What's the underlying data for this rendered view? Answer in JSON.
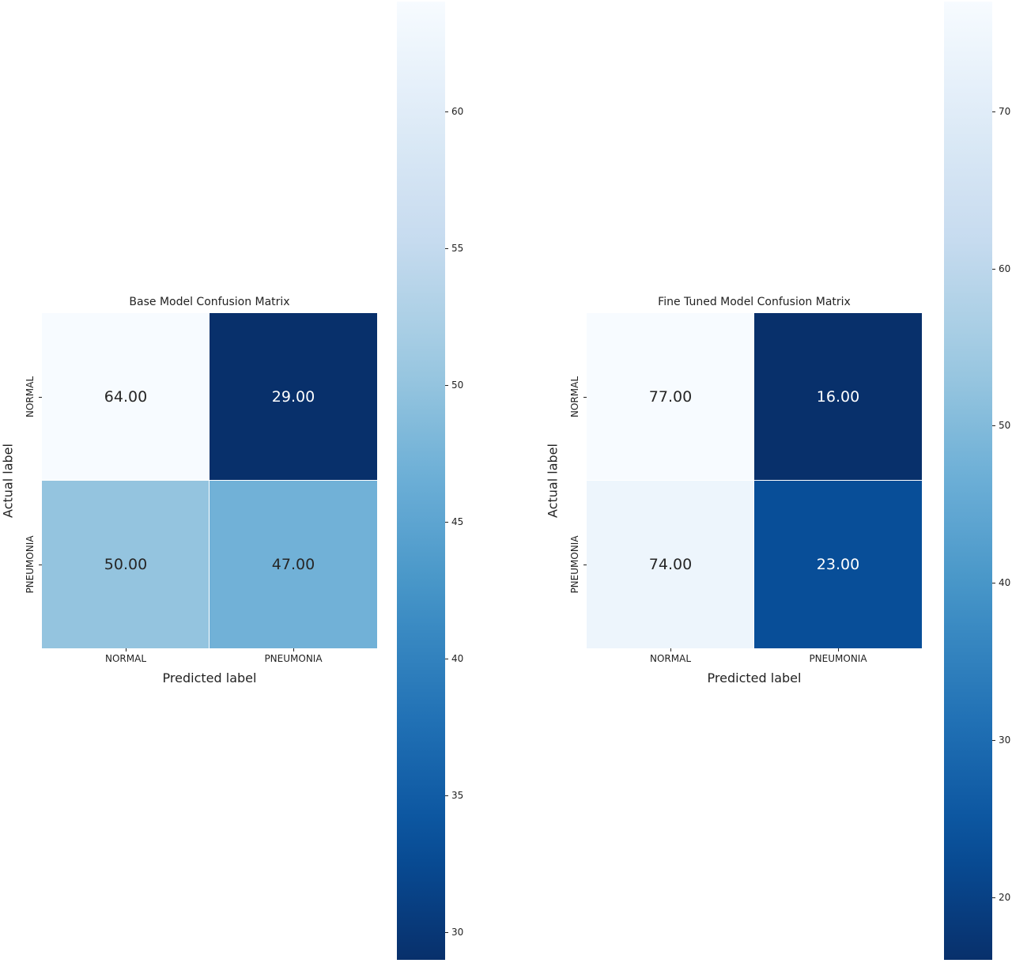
{
  "chart_data": [
    {
      "type": "heatmap",
      "title": "Base Model Confusion Matrix",
      "xlabel": "Predicted label",
      "ylabel": "Actual label",
      "x_categories": [
        "NORMAL",
        "PNEUMONIA"
      ],
      "y_categories": [
        "NORMAL",
        "PNEUMONIA"
      ],
      "values": [
        [
          64,
          29
        ],
        [
          50,
          47
        ]
      ],
      "value_labels": [
        [
          "64.00",
          "29.00"
        ],
        [
          "50.00",
          "47.00"
        ]
      ],
      "colormap": "Blues_r",
      "colorbar": {
        "min": 29,
        "max": 64,
        "ticks": [
          30,
          35,
          40,
          45,
          50,
          55,
          60
        ]
      }
    },
    {
      "type": "heatmap",
      "title": "Fine Tuned Model Confusion Matrix",
      "xlabel": "Predicted label",
      "ylabel": "Actual label",
      "x_categories": [
        "NORMAL",
        "PNEUMONIA"
      ],
      "y_categories": [
        "NORMAL",
        "PNEUMONIA"
      ],
      "values": [
        [
          77,
          16
        ],
        [
          74,
          23
        ]
      ],
      "value_labels": [
        [
          "77.00",
          "16.00"
        ],
        [
          "74.00",
          "23.00"
        ]
      ],
      "colormap": "Blues_r",
      "colorbar": {
        "min": 16,
        "max": 77,
        "ticks": [
          20,
          30,
          40,
          50,
          60,
          70
        ]
      }
    }
  ]
}
